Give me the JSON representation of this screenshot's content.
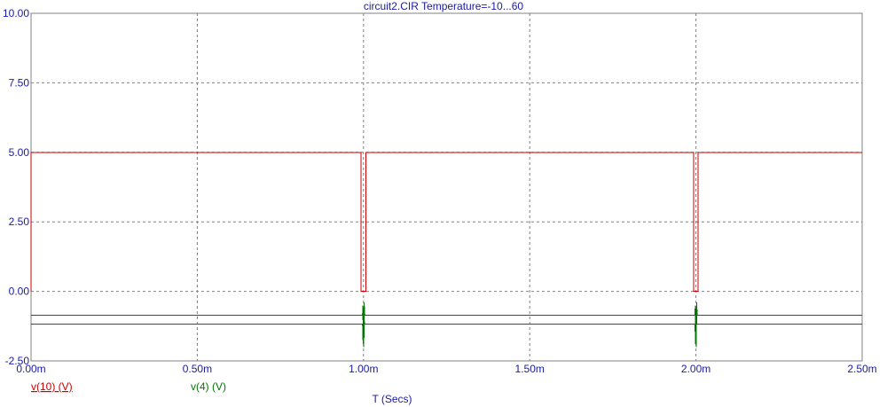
{
  "colors": {
    "axis_text": "#1a1aa8",
    "series_1": "#cc0000",
    "series_2": "#007700",
    "grid": "#808080",
    "frame": "#808080"
  },
  "chart_data": {
    "type": "line",
    "title": "circuit2.CIR Temperature=-10...60",
    "xlabel": "T (Secs)",
    "ylabel": "",
    "xlim": [
      0,
      2.5
    ],
    "ylim": [
      -2.5,
      10.0
    ],
    "x_unit": "ms",
    "x_ticks": [
      0,
      0.5,
      1.0,
      1.5,
      2.0,
      2.5
    ],
    "x_tick_labels": [
      "0.00m",
      "0.50m",
      "1.00m",
      "1.50m",
      "2.00m",
      "2.50m"
    ],
    "y_ticks": [
      -2.5,
      0,
      2.5,
      5.0,
      7.5,
      10.0
    ],
    "y_tick_labels": [
      "-2.50",
      "0.00",
      "2.50",
      "5.00",
      "7.50",
      "10.00"
    ],
    "grid": true,
    "legend_position": "bottom-left",
    "series": [
      {
        "name": "v(10) (V)",
        "color": "#cc0000",
        "points": [
          [
            0,
            0
          ],
          [
            0,
            5.0
          ],
          [
            0.993,
            5.0
          ],
          [
            0.993,
            0
          ],
          [
            1.007,
            0
          ],
          [
            1.007,
            5.0
          ],
          [
            1.993,
            5.0
          ],
          [
            1.993,
            0
          ],
          [
            2.007,
            0
          ],
          [
            2.007,
            5.0
          ],
          [
            2.5,
            5.0
          ]
        ]
      },
      {
        "name": "v(4) (V)",
        "color": "#007700",
        "traces": [
          {
            "points": [
              [
                0,
                -0.85
              ],
              [
                0.997,
                -0.85
              ],
              [
                0.998,
                -0.5
              ],
              [
                0.999,
                -1.5
              ],
              [
                1.0,
                -0.6
              ],
              [
                1.001,
                -2.0
              ],
              [
                1.002,
                -0.4
              ],
              [
                1.004,
                -0.85
              ],
              [
                1.997,
                -0.85
              ],
              [
                1.998,
                -0.5
              ],
              [
                1.999,
                -1.5
              ],
              [
                2.0,
                -0.6
              ],
              [
                2.001,
                -2.0
              ],
              [
                2.002,
                -0.4
              ],
              [
                2.004,
                -0.85
              ],
              [
                2.5,
                -0.85
              ]
            ]
          },
          {
            "points": [
              [
                0,
                -1.18
              ],
              [
                0.997,
                -1.18
              ],
              [
                0.999,
                -1.9
              ],
              [
                1.001,
                -0.7
              ],
              [
                1.003,
                -1.18
              ],
              [
                1.997,
                -1.18
              ],
              [
                1.999,
                -1.9
              ],
              [
                2.001,
                -0.7
              ],
              [
                2.003,
                -1.18
              ],
              [
                2.5,
                -1.18
              ]
            ]
          }
        ]
      }
    ]
  }
}
